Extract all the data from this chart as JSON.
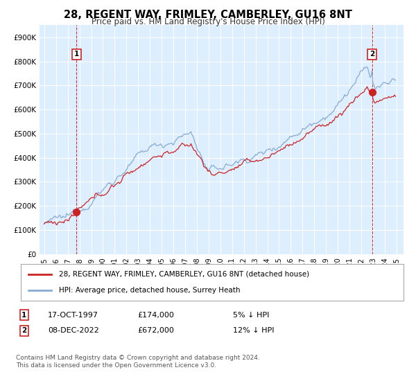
{
  "title": "28, REGENT WAY, FRIMLEY, CAMBERLEY, GU16 8NT",
  "subtitle": "Price paid vs. HM Land Registry's House Price Index (HPI)",
  "legend_label_red": "28, REGENT WAY, FRIMLEY, CAMBERLEY, GU16 8NT (detached house)",
  "legend_label_blue": "HPI: Average price, detached house, Surrey Heath",
  "footnote": "Contains HM Land Registry data © Crown copyright and database right 2024.\nThis data is licensed under the Open Government Licence v3.0.",
  "purchase1_date": "17-OCT-1997",
  "purchase1_price": 174000,
  "purchase1_note": "5% ↓ HPI",
  "purchase2_date": "08-DEC-2022",
  "purchase2_price": 672000,
  "purchase2_note": "12% ↓ HPI",
  "ylim": [
    0,
    950000
  ],
  "yticks": [
    0,
    100000,
    200000,
    300000,
    400000,
    500000,
    600000,
    700000,
    800000,
    900000
  ],
  "ytick_labels": [
    "£0",
    "£100K",
    "£200K",
    "£300K",
    "£400K",
    "£500K",
    "£600K",
    "£700K",
    "£800K",
    "£900K"
  ],
  "background_color": "#ddeeff",
  "red_color": "#cc2222",
  "blue_color": "#88aad4",
  "grid_color": "#ffffff",
  "title_fontsize": 10.5,
  "subtitle_fontsize": 8.5,
  "annotation_box_color": "#cc2222",
  "marker1_price": 174000,
  "marker2_price": 672000,
  "oct1997_year": 1997.79,
  "dec2022_year": 2022.92
}
